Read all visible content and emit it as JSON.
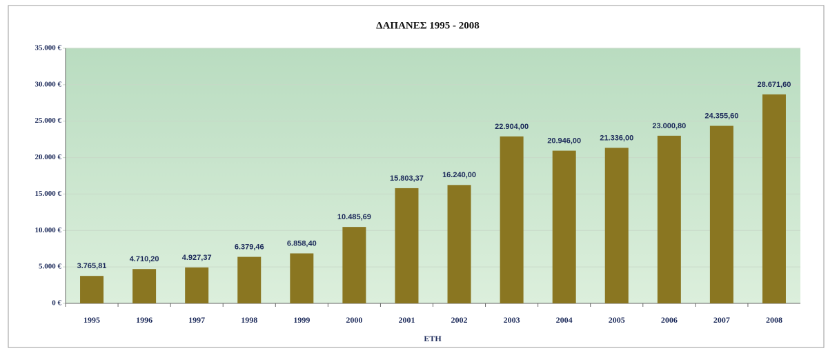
{
  "chart_data": {
    "type": "bar",
    "title": "ΔΑΠΑΝΕΣ 1995 - 2008",
    "x_label": "ΕΤΗ",
    "categories": [
      "1995",
      "1996",
      "1997",
      "1998",
      "1999",
      "2000",
      "2001",
      "2002",
      "2003",
      "2004",
      "2005",
      "2006",
      "2007",
      "2008"
    ],
    "values": [
      3765.81,
      4710.2,
      4927.37,
      6379.46,
      6858.4,
      10485.69,
      15803.37,
      16240.0,
      22904.0,
      20946.0,
      21336.0,
      23000.8,
      24355.6,
      28671.6
    ],
    "value_labels": [
      "3.765,81",
      "4.710,20",
      "4.927,37",
      "6.379,46",
      "6.858,40",
      "10.485,69",
      "15.803,37",
      "16.240,00",
      "22.904,00",
      "20.946,00",
      "21.336,00",
      "23.000,80",
      "24.355,60",
      "28.671,60"
    ],
    "color": "#8a7621",
    "ylim": [
      0,
      35000
    ],
    "yticks": [
      {
        "value": 0,
        "label": "0 €"
      },
      {
        "value": 5000,
        "label": "5.000 €"
      },
      {
        "value": 10000,
        "label": "10.000 €"
      },
      {
        "value": 15000,
        "label": "15.000 €"
      },
      {
        "value": 20000,
        "label": "20.000 €"
      },
      {
        "value": 25000,
        "label": "25.000 €"
      },
      {
        "value": 30000,
        "label": "30.000 €"
      },
      {
        "value": 35000,
        "label": "35.000 €"
      }
    ],
    "grid": true
  }
}
